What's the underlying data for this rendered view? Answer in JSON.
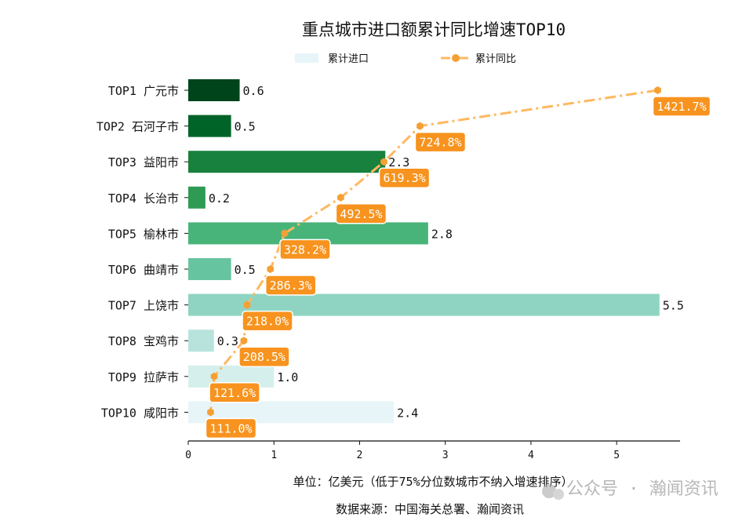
{
  "chart_data": {
    "type": "bar",
    "orientation": "horizontal",
    "title": "重点城市进口额累计同比增速TOP10",
    "categories": [
      "TOP1 广元市",
      "TOP2 石河子市",
      "TOP3 益阳市",
      "TOP4 长治市",
      "TOP5 榆林市",
      "TOP6 曲靖市",
      "TOP7 上饶市",
      "TOP8 宝鸡市",
      "TOP9 拉萨市",
      "TOP10 咸阳市"
    ],
    "series": [
      {
        "name": "累计进口",
        "type": "bar",
        "values": [
          0.6,
          0.5,
          2.3,
          0.2,
          2.8,
          0.5,
          5.5,
          0.3,
          1.0,
          2.4
        ],
        "colors": [
          "#00441b",
          "#006428",
          "#17813d",
          "#2e9a54",
          "#48b47a",
          "#67c4a0",
          "#8fd4c2",
          "#b8e3dc",
          "#d5efed",
          "#e7f5f9"
        ]
      },
      {
        "name": "累计同比",
        "type": "line",
        "values": [
          1421.7,
          724.8,
          619.3,
          492.5,
          328.2,
          286.3,
          218.0,
          208.5,
          121.6,
          111.0
        ],
        "labels": [
          "1421.7%",
          "724.8%",
          "619.3%",
          "492.5%",
          "328.2%",
          "286.3%",
          "218.0%",
          "208.5%",
          "121.6%",
          "111.0%"
        ],
        "color": "#ffb860",
        "marker_color": "#f5a034",
        "label_bg": "#f7931e",
        "xlim": [
          45.5,
          1487.2
        ]
      }
    ],
    "value_labels": [
      "0.6",
      "0.5",
      "2.3",
      "0.2",
      "2.8",
      "0.5",
      "5.5",
      "0.3",
      "1.0",
      "2.4"
    ],
    "xlim": [
      0,
      5.74
    ],
    "xticks": [
      0,
      1,
      2,
      3,
      4,
      5
    ],
    "xtick_labels": [
      "0",
      "1",
      "2",
      "3",
      "4",
      "5"
    ],
    "xlabel": "单位：亿美元（低于75%分位数城市不纳入增速排序）",
    "source": "数据来源：中国海关总署、瀚闻资讯",
    "legend_placement": "top-center",
    "grid": false
  },
  "watermark": "公众号 · 瀚闻资讯"
}
